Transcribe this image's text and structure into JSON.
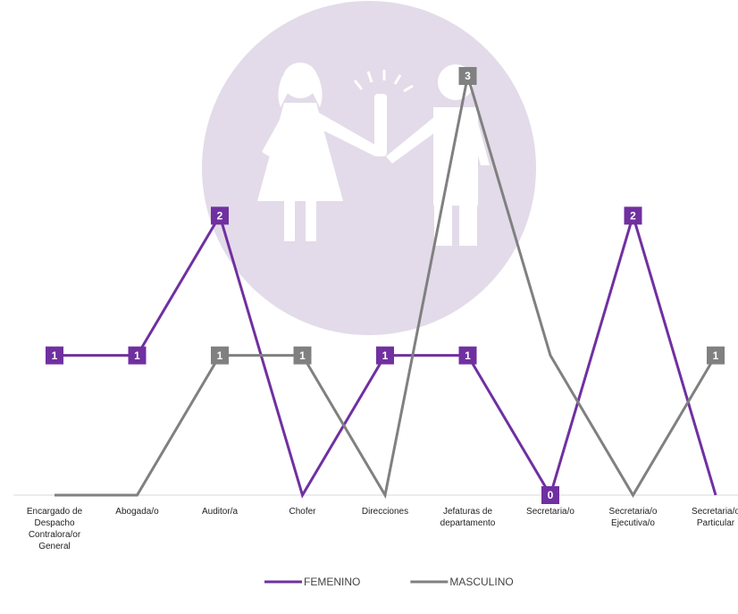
{
  "chart_data": {
    "type": "line",
    "categories": [
      "Encargado de Despacho Contralora/or General",
      "Abogada/o",
      "Auditor/a",
      "Chofer",
      "Direcciones",
      "Jefaturas de departamento",
      "Secretaria/o",
      "Secretaria/o Ejecutiva/o",
      "Secretaria/o Particular"
    ],
    "series": [
      {
        "name": "FEMENINO",
        "color": "#7030a0",
        "values": [
          1,
          1,
          2,
          0,
          1,
          1,
          0,
          2,
          0
        ],
        "value_labels": [
          1,
          1,
          2,
          null,
          1,
          1,
          0,
          2,
          null
        ]
      },
      {
        "name": "MASCULINO",
        "color": "#808080",
        "values": [
          0,
          0,
          1,
          1,
          0,
          3,
          1,
          0,
          1
        ],
        "value_labels": [
          null,
          null,
          1,
          1,
          null,
          3,
          null,
          null,
          1
        ]
      }
    ],
    "ylim": [
      0,
      3
    ],
    "legend": "bottom"
  }
}
